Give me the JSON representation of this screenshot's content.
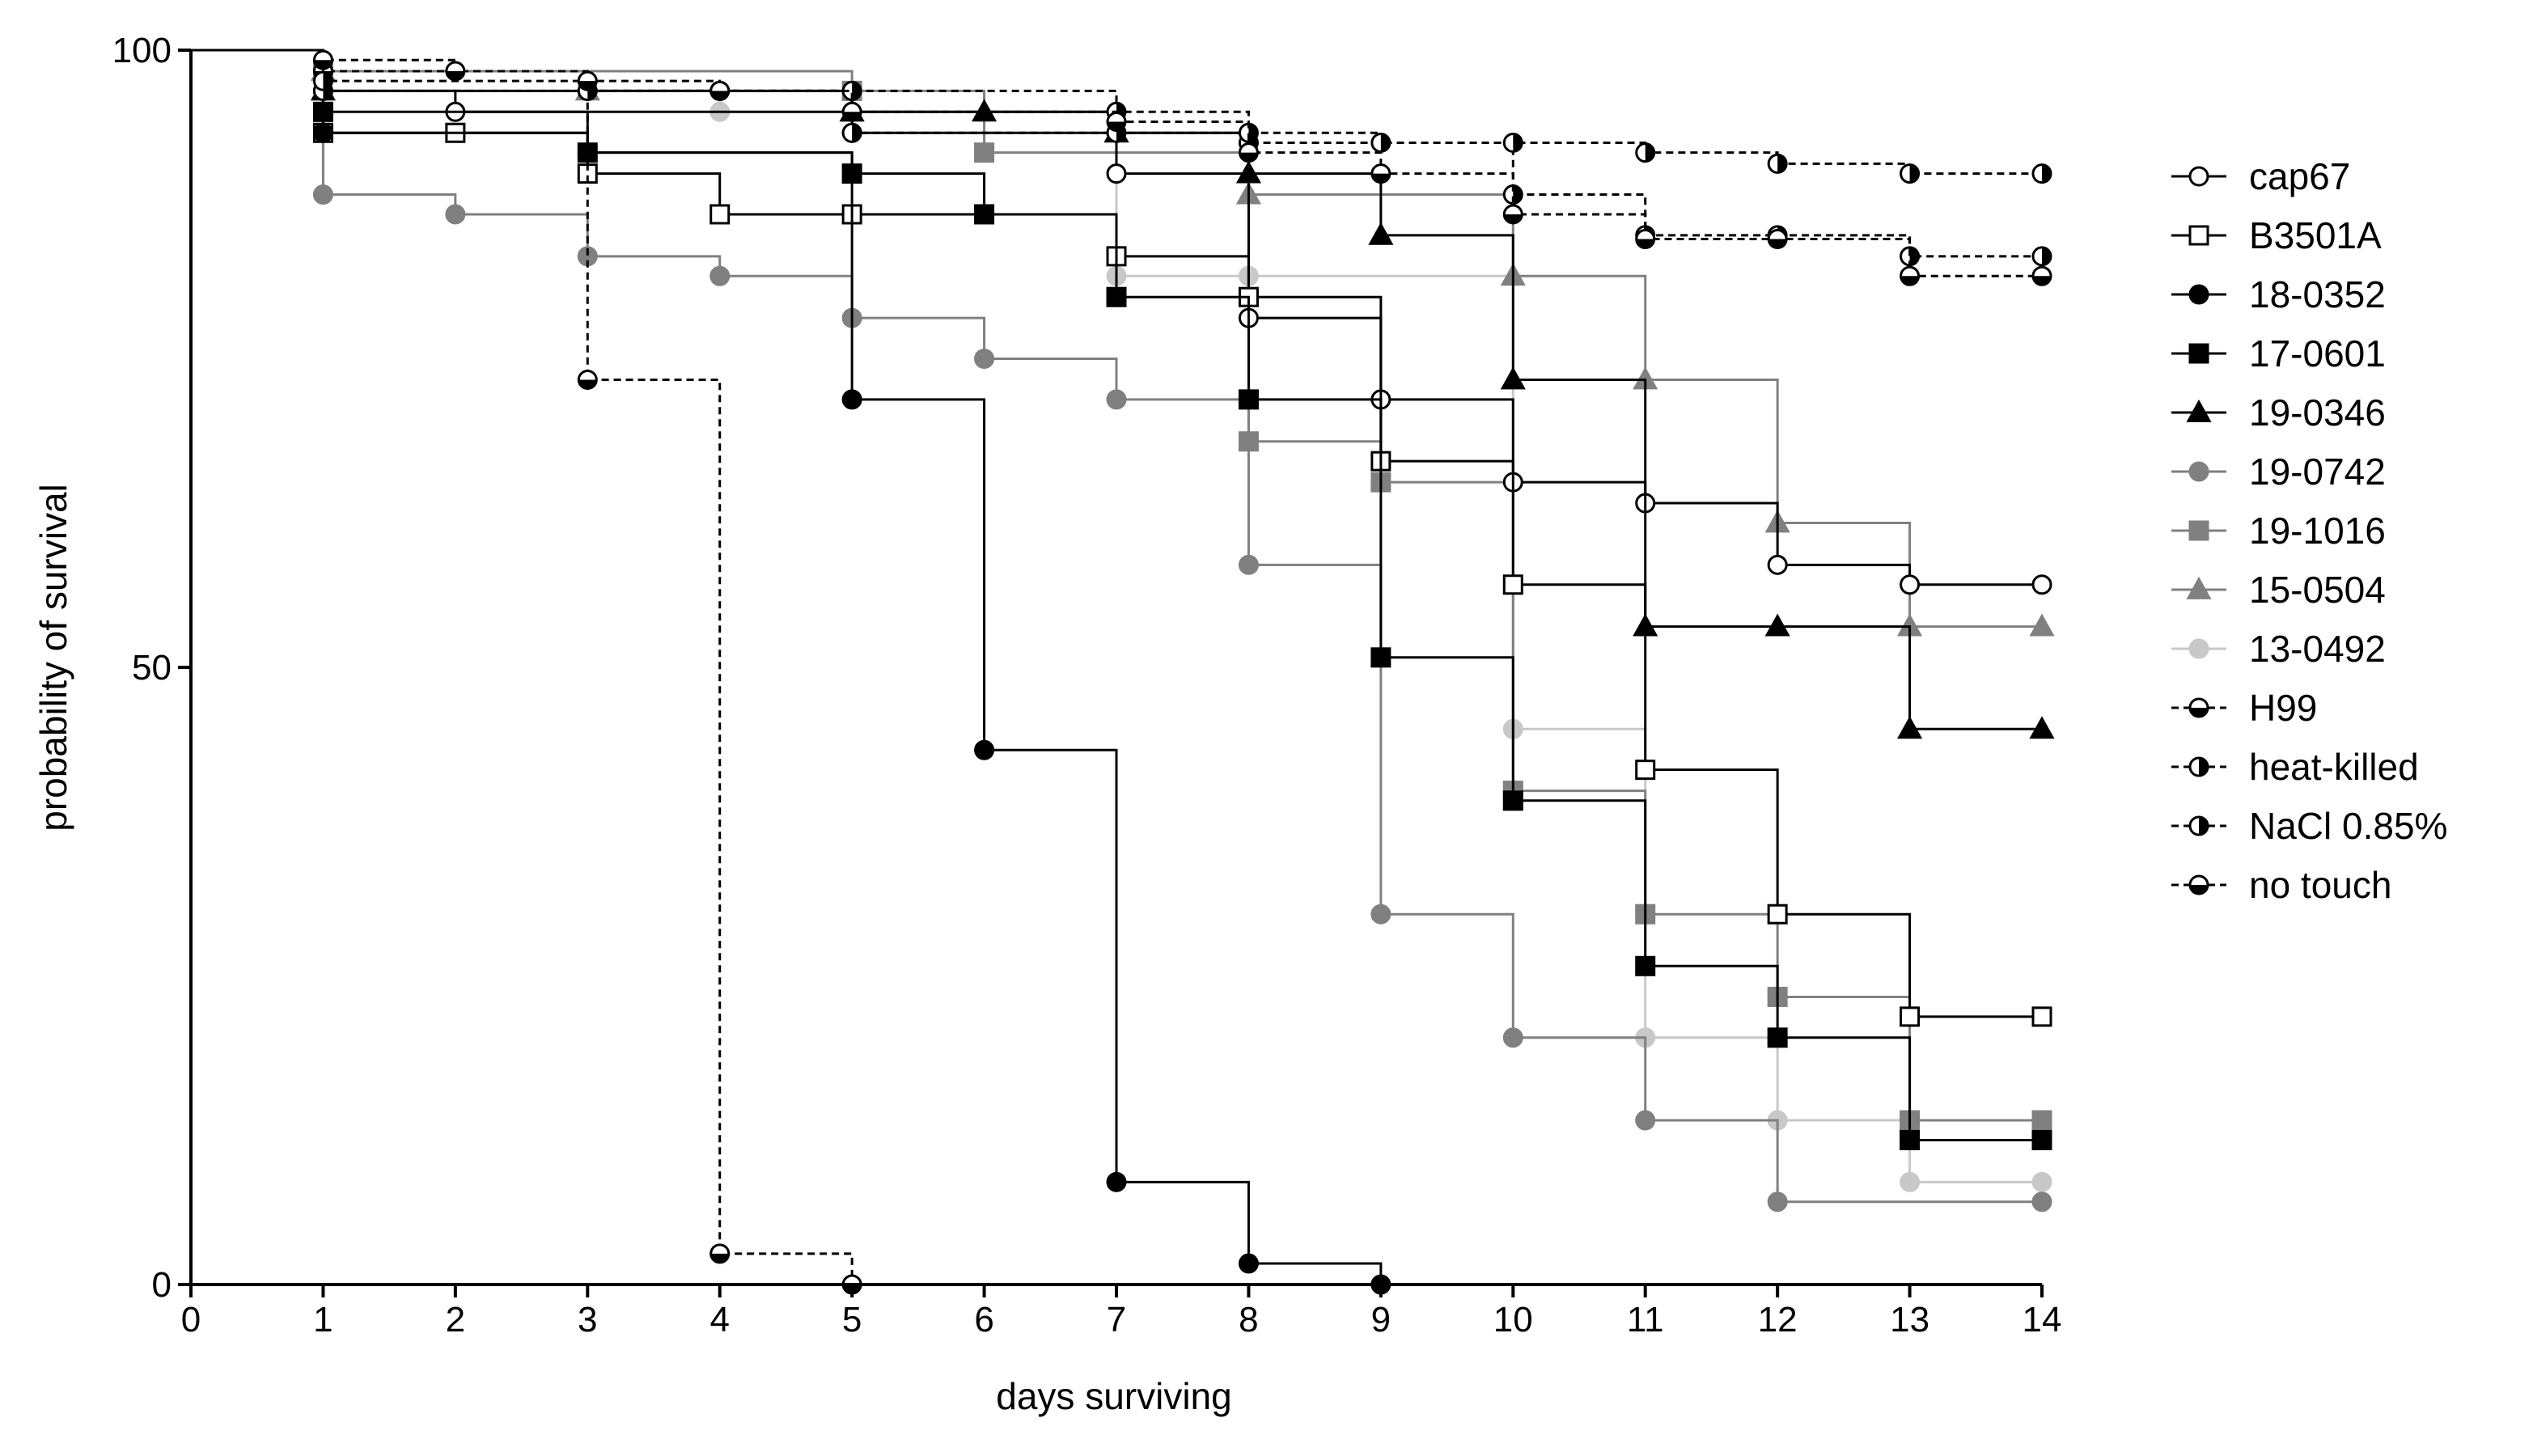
{
  "chart_data": {
    "type": "line",
    "subtype": "kaplan-meier step survival curves",
    "title": "",
    "xlabel": "days surviving",
    "ylabel": "probability of survival",
    "xlim": [
      0,
      14
    ],
    "ylim": [
      0,
      100
    ],
    "xticks": [
      0,
      1,
      2,
      3,
      4,
      5,
      6,
      7,
      8,
      9,
      10,
      11,
      12,
      13,
      14
    ],
    "yticks": [
      0,
      50,
      100
    ],
    "grid": false,
    "legend_position": "right",
    "series": [
      {
        "name": "cap67",
        "color": "#000000",
        "marker": "circle",
        "fill": "open",
        "line": "solid",
        "points": [
          [
            0,
            100
          ],
          [
            1,
            96.7
          ],
          [
            2,
            95
          ],
          [
            5,
            93.3
          ],
          [
            7,
            90
          ],
          [
            8,
            78.3
          ],
          [
            9,
            71.7
          ],
          [
            10,
            65
          ],
          [
            11,
            63.3
          ],
          [
            12,
            58.3
          ],
          [
            13,
            56.7
          ],
          [
            14,
            56.7
          ]
        ]
      },
      {
        "name": "B3501A",
        "color": "#000000",
        "marker": "square",
        "fill": "open",
        "line": "solid",
        "points": [
          [
            0,
            100
          ],
          [
            1,
            93.3
          ],
          [
            2,
            93.3
          ],
          [
            3,
            90
          ],
          [
            4,
            86.7
          ],
          [
            5,
            86.7
          ],
          [
            7,
            83.3
          ],
          [
            8,
            80
          ],
          [
            9,
            66.7
          ],
          [
            10,
            56.7
          ],
          [
            11,
            41.7
          ],
          [
            12,
            30
          ],
          [
            13,
            21.7
          ],
          [
            14,
            21.7
          ]
        ]
      },
      {
        "name": "18-0352",
        "color": "#000000",
        "marker": "circle",
        "fill": "solid",
        "line": "solid",
        "points": [
          [
            0,
            100
          ],
          [
            1,
            93.3
          ],
          [
            3,
            91.7
          ],
          [
            5,
            71.7
          ],
          [
            6,
            43.3
          ],
          [
            7,
            8.3
          ],
          [
            8,
            1.7
          ],
          [
            9,
            0
          ]
        ]
      },
      {
        "name": "17-0601",
        "color": "#000000",
        "marker": "square",
        "fill": "solid",
        "line": "solid",
        "points": [
          [
            0,
            100
          ],
          [
            1,
            95
          ],
          [
            3,
            91.7
          ],
          [
            5,
            90
          ],
          [
            6,
            86.7
          ],
          [
            7,
            80
          ],
          [
            8,
            71.7
          ],
          [
            9,
            50.8
          ],
          [
            10,
            39.2
          ],
          [
            11,
            25.8
          ],
          [
            12,
            20
          ],
          [
            13,
            11.7
          ],
          [
            14,
            11.7
          ]
        ]
      },
      {
        "name": "19-0346",
        "color": "#000000",
        "marker": "triangle",
        "fill": "solid",
        "line": "solid",
        "points": [
          [
            0,
            100
          ],
          [
            1,
            96.7
          ],
          [
            5,
            95
          ],
          [
            6,
            95
          ],
          [
            7,
            93.3
          ],
          [
            8,
            90
          ],
          [
            9,
            85
          ],
          [
            10,
            73.3
          ],
          [
            11,
            53.3
          ],
          [
            12,
            53.3
          ],
          [
            13,
            45
          ],
          [
            14,
            45
          ]
        ]
      },
      {
        "name": "19-0742",
        "color": "#808080",
        "marker": "circle",
        "fill": "solid",
        "line": "solid",
        "points": [
          [
            0,
            100
          ],
          [
            1,
            88.3
          ],
          [
            2,
            86.7
          ],
          [
            3,
            83.3
          ],
          [
            4,
            81.7
          ],
          [
            5,
            78.3
          ],
          [
            6,
            75
          ],
          [
            7,
            71.7
          ],
          [
            8,
            58.3
          ],
          [
            9,
            30
          ],
          [
            10,
            20
          ],
          [
            11,
            13.3
          ],
          [
            12,
            6.7
          ],
          [
            14,
            6.7
          ]
        ]
      },
      {
        "name": "19-1016",
        "color": "#808080",
        "marker": "square",
        "fill": "solid",
        "line": "solid",
        "points": [
          [
            0,
            100
          ],
          [
            1,
            98.3
          ],
          [
            5,
            96.7
          ],
          [
            6,
            91.7
          ],
          [
            8,
            68.3
          ],
          [
            9,
            65
          ],
          [
            10,
            40
          ],
          [
            11,
            30
          ],
          [
            12,
            23.3
          ],
          [
            13,
            13.3
          ],
          [
            14,
            13.3
          ]
        ]
      },
      {
        "name": "15-0504",
        "color": "#808080",
        "marker": "triangle",
        "fill": "solid",
        "line": "solid",
        "points": [
          [
            0,
            100
          ],
          [
            1,
            98.3
          ],
          [
            3,
            96.7
          ],
          [
            5,
            95
          ],
          [
            7,
            93.3
          ],
          [
            8,
            88.3
          ],
          [
            10,
            81.7
          ],
          [
            11,
            73.3
          ],
          [
            12,
            61.7
          ],
          [
            13,
            53.3
          ],
          [
            14,
            53.3
          ]
        ]
      },
      {
        "name": "13-0492",
        "color": "#c8c8c8",
        "marker": "circle",
        "fill": "solid",
        "line": "solid",
        "points": [
          [
            0,
            100
          ],
          [
            1,
            98.3
          ],
          [
            3,
            96.7
          ],
          [
            4,
            95
          ],
          [
            7,
            81.7
          ],
          [
            8,
            81.7
          ],
          [
            10,
            45
          ],
          [
            11,
            20
          ],
          [
            12,
            13.3
          ],
          [
            13,
            8.3
          ],
          [
            14,
            8.3
          ]
        ]
      },
      {
        "name": "H99",
        "color": "#000000",
        "marker": "circle",
        "fill": "bottom-half",
        "line": "dashed",
        "points": [
          [
            0,
            100
          ],
          [
            1,
            98.3
          ],
          [
            3,
            73.3
          ],
          [
            4,
            2.5
          ],
          [
            5,
            0
          ]
        ]
      },
      {
        "name": "heat-killed",
        "color": "#000000",
        "marker": "circle",
        "fill": "right-half",
        "line": "dashed",
        "points": [
          [
            0,
            100
          ],
          [
            1,
            96.7
          ],
          [
            3,
            96.7
          ],
          [
            5,
            93.3
          ],
          [
            7,
            93.3
          ],
          [
            8,
            92.5
          ],
          [
            10,
            88.3
          ],
          [
            11,
            85
          ],
          [
            12,
            85
          ],
          [
            13,
            83.3
          ],
          [
            14,
            83.3
          ]
        ]
      },
      {
        "name": "NaCl 0.85%",
        "color": "#000000",
        "marker": "circle",
        "fill": "right-half",
        "line": "dashed",
        "points": [
          [
            0,
            100
          ],
          [
            1,
            97.5
          ],
          [
            3,
            96.7
          ],
          [
            4,
            96.7
          ],
          [
            5,
            96.7
          ],
          [
            7,
            95
          ],
          [
            8,
            93.3
          ],
          [
            9,
            92.5
          ],
          [
            10,
            92.5
          ],
          [
            11,
            91.7
          ],
          [
            12,
            90.8
          ],
          [
            13,
            90
          ],
          [
            14,
            90
          ]
        ]
      },
      {
        "name": "no touch",
        "color": "#000000",
        "marker": "circle",
        "fill": "bottom-half",
        "line": "dashed",
        "points": [
          [
            0,
            100
          ],
          [
            1,
            99.2
          ],
          [
            2,
            98.3
          ],
          [
            3,
            97.5
          ],
          [
            4,
            96.7
          ],
          [
            5,
            95
          ],
          [
            7,
            94.2
          ],
          [
            8,
            91.7
          ],
          [
            9,
            90
          ],
          [
            10,
            86.7
          ],
          [
            11,
            84.7
          ],
          [
            12,
            84.7
          ],
          [
            13,
            81.7
          ],
          [
            14,
            81.7
          ]
        ]
      }
    ]
  }
}
